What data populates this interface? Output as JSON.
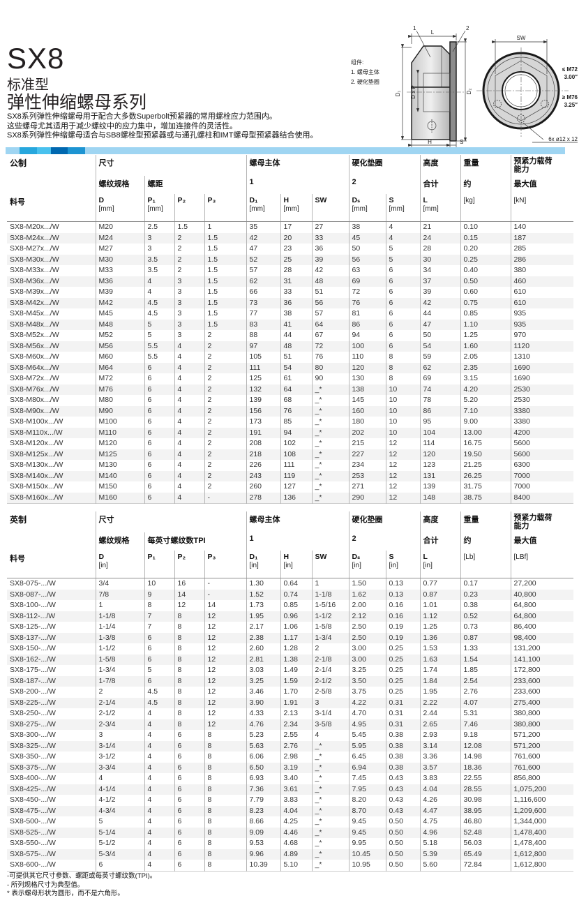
{
  "header": {
    "product": "SX8",
    "type_line": "标准型",
    "series_line": "弹性伸缩螺母系列",
    "description": [
      "SX8系列弹性伸缩螺母用于配合大多数Superbolt预紧器的常用螺栓应力范围内。",
      "这些螺母尤其适用于减少螺纹中的应力集中，增加连接件的灵活性。",
      "SX8系列弹性伸缩螺母适合与SB8螺栓型预紧器或与通孔螺柱和IMT螺母型预紧器结合使用。"
    ]
  },
  "diagram": {
    "note_title": "组件:",
    "note_1": "1. 螺母主体",
    "note_2": "2. 硬化垫圈",
    "dim_L": "L",
    "dim_H": "H",
    "dim_S": "S",
    "dim_SW": "SW",
    "dim_D1": "D₁",
    "dim_DxP": "D x P",
    "dim_D2": "D₂",
    "callout_1": "1",
    "callout_2": "2",
    "hex_max": "≤ M72",
    "hex_max_in": "3.00″",
    "round_min": "≥ M76",
    "round_min_in": "3.25″",
    "holes": "6x ø12 x 12"
  },
  "bar_colors": [
    "#9fd5f2",
    "#27a7dd",
    "#49c1ee",
    "#0068b0",
    "#1d94d2",
    "#9fd5f2"
  ],
  "metric": {
    "name": "metric-spec-table",
    "region": "公制",
    "part_col": "料号",
    "size": "尺寸",
    "thread": "螺纹规格",
    "pitch": "螺距",
    "nut_body": "螺母主体",
    "nut_num": "1",
    "washer": "硬化垫圈",
    "washer_num": "2",
    "height": "高度",
    "height_sub": "合计",
    "weight": "重量",
    "weight_sub": "约",
    "preload": "预紧力载荷\n能力",
    "preload_sub": "最大值",
    "cols": [
      [
        "D",
        "[mm]"
      ],
      [
        "P₁",
        "[mm]"
      ],
      [
        "P₂",
        ""
      ],
      [
        "P₃",
        ""
      ],
      [
        "D₁",
        "[mm]"
      ],
      [
        "H",
        "[mm]"
      ],
      [
        "SW",
        ""
      ],
      [
        "Dₛ",
        "[mm]"
      ],
      [
        "S",
        "[mm]"
      ],
      [
        "L",
        "[mm]"
      ],
      [
        "",
        "[kg]"
      ],
      [
        "",
        "[kN]"
      ]
    ],
    "rows": [
      [
        "SX8-M20x.../W",
        "M20",
        "2.5",
        "1.5",
        "1",
        "35",
        "17",
        "27",
        "38",
        "4",
        "21",
        "0.10",
        "140"
      ],
      [
        "SX8-M24x.../W",
        "M24",
        "3",
        "2",
        "1.5",
        "42",
        "20",
        "33",
        "45",
        "4",
        "24",
        "0.15",
        "187"
      ],
      [
        "SX8-M27x.../W",
        "M27",
        "3",
        "2",
        "1.5",
        "47",
        "23",
        "36",
        "50",
        "5",
        "28",
        "0.20",
        "285"
      ],
      [
        "SX8-M30x.../W",
        "M30",
        "3.5",
        "2",
        "1.5",
        "52",
        "25",
        "39",
        "56",
        "5",
        "30",
        "0.25",
        "286"
      ],
      [
        "SX8-M33x.../W",
        "M33",
        "3.5",
        "2",
        "1.5",
        "57",
        "28",
        "42",
        "63",
        "6",
        "34",
        "0.40",
        "380"
      ],
      [
        "SX8-M36x.../W",
        "M36",
        "4",
        "3",
        "1.5",
        "62",
        "31",
        "48",
        "69",
        "6",
        "37",
        "0.50",
        "460"
      ],
      [
        "SX8-M39x.../W",
        "M39",
        "4",
        "3",
        "1.5",
        "66",
        "33",
        "51",
        "72",
        "6",
        "39",
        "0.60",
        "610"
      ],
      [
        "SX8-M42x.../W",
        "M42",
        "4.5",
        "3",
        "1.5",
        "73",
        "36",
        "56",
        "76",
        "6",
        "42",
        "0.75",
        "610"
      ],
      [
        "SX8-M45x.../W",
        "M45",
        "4.5",
        "3",
        "1.5",
        "77",
        "38",
        "57",
        "81",
        "6",
        "44",
        "0.85",
        "935"
      ],
      [
        "SX8-M48x.../W",
        "M48",
        "5",
        "3",
        "1.5",
        "83",
        "41",
        "64",
        "86",
        "6",
        "47",
        "1.10",
        "935"
      ],
      [
        "SX8-M52x.../W",
        "M52",
        "5",
        "3",
        "2",
        "88",
        "44",
        "67",
        "94",
        "6",
        "50",
        "1.25",
        "970"
      ],
      [
        "SX8-M56x.../W",
        "M56",
        "5.5",
        "4",
        "2",
        "97",
        "48",
        "72",
        "100",
        "6",
        "54",
        "1.60",
        "1120"
      ],
      [
        "SX8-M60x.../W",
        "M60",
        "5.5",
        "4",
        "2",
        "105",
        "51",
        "76",
        "110",
        "8",
        "59",
        "2.05",
        "1310"
      ],
      [
        "SX8-M64x.../W",
        "M64",
        "6",
        "4",
        "2",
        "111",
        "54",
        "80",
        "120",
        "8",
        "62",
        "2.35",
        "1690"
      ],
      [
        "SX8-M72x.../W",
        "M72",
        "6",
        "4",
        "2",
        "125",
        "61",
        "90",
        "130",
        "8",
        "69",
        "3.15",
        "1690"
      ],
      [
        "SX8-M76x.../W",
        "M76",
        "6",
        "4",
        "2",
        "132",
        "64",
        "_*",
        "138",
        "10",
        "74",
        "4.20",
        "2530"
      ],
      [
        "SX8-M80x.../W",
        "M80",
        "6",
        "4",
        "2",
        "139",
        "68",
        "_*",
        "145",
        "10",
        "78",
        "5.20",
        "2530"
      ],
      [
        "SX8-M90x.../W",
        "M90",
        "6",
        "4",
        "2",
        "156",
        "76",
        "_*",
        "160",
        "10",
        "86",
        "7.10",
        "3380"
      ],
      [
        "SX8-M100x.../W",
        "M100",
        "6",
        "4",
        "2",
        "173",
        "85",
        "_*",
        "180",
        "10",
        "95",
        "9.00",
        "3380"
      ],
      [
        "SX8-M110x.../W",
        "M110",
        "6",
        "4",
        "2",
        "191",
        "94",
        "_*",
        "202",
        "10",
        "104",
        "13.00",
        "4200"
      ],
      [
        "SX8-M120x.../W",
        "M120",
        "6",
        "4",
        "2",
        "208",
        "102",
        "_*",
        "215",
        "12",
        "114",
        "16.75",
        "5600"
      ],
      [
        "SX8-M125x.../W",
        "M125",
        "6",
        "4",
        "2",
        "218",
        "108",
        "_*",
        "227",
        "12",
        "120",
        "19.50",
        "5600"
      ],
      [
        "SX8-M130x.../W",
        "M130",
        "6",
        "4",
        "2",
        "226",
        "111",
        "_*",
        "234",
        "12",
        "123",
        "21.25",
        "6300"
      ],
      [
        "SX8-M140x.../W",
        "M140",
        "6",
        "4",
        "2",
        "243",
        "119",
        "_*",
        "253",
        "12",
        "131",
        "26.25",
        "7000"
      ],
      [
        "SX8-M150x.../W",
        "M150",
        "6",
        "4",
        "2",
        "260",
        "127",
        "_*",
        "271",
        "12",
        "139",
        "31.75",
        "7000"
      ],
      [
        "SX8-M160x.../W",
        "M160",
        "6",
        "4",
        "-",
        "278",
        "136",
        "_*",
        "290",
        "12",
        "148",
        "38.75",
        "8400"
      ]
    ]
  },
  "imperial": {
    "name": "imperial-spec-table",
    "region": "英制",
    "part_col": "料号",
    "size": "尺寸",
    "thread": "螺纹规格",
    "pitch": "每英寸螺纹数TPI",
    "nut_body": "螺母主体",
    "nut_num": "1",
    "washer": "硬化垫圈",
    "washer_num": "2",
    "height": "高度",
    "height_sub": "合计",
    "weight": "重量",
    "weight_sub": "约",
    "preload": "预紧力载荷\n能力",
    "preload_sub": "最大值",
    "cols": [
      [
        "D",
        "[in]"
      ],
      [
        "P₁",
        ""
      ],
      [
        "P₂",
        ""
      ],
      [
        "P₃",
        ""
      ],
      [
        "D₁",
        "[in]"
      ],
      [
        "H",
        "[in]"
      ],
      [
        "SW",
        ""
      ],
      [
        "Dₛ",
        "[in]"
      ],
      [
        "S",
        "[in]"
      ],
      [
        "L",
        "[in]"
      ],
      [
        "",
        "[Lb]"
      ],
      [
        "",
        "[LBf]"
      ]
    ],
    "rows": [
      [
        "SX8-075-.../W",
        "3/4",
        "10",
        "16",
        "-",
        "1.30",
        "0.64",
        "1",
        "1.50",
        "0.13",
        "0.77",
        "0.17",
        "27,200"
      ],
      [
        "SX8-087-.../W",
        "7/8",
        "9",
        "14",
        "-",
        "1.52",
        "0.74",
        "1-1/8",
        "1.62",
        "0.13",
        "0.87",
        "0.23",
        "40,800"
      ],
      [
        "SX8-100-.../W",
        "1",
        "8",
        "12",
        "14",
        "1.73",
        "0.85",
        "1-5/16",
        "2.00",
        "0.16",
        "1.01",
        "0.38",
        "64,800"
      ],
      [
        "SX8-112-.../W",
        "1-1/8",
        "7",
        "8",
        "12",
        "1.95",
        "0.96",
        "1-1/2",
        "2.12",
        "0.16",
        "1.12",
        "0.52",
        "64,800"
      ],
      [
        "SX8-125-.../W",
        "1-1/4",
        "7",
        "8",
        "12",
        "2.17",
        "1.06",
        "1-5/8",
        "2.50",
        "0.19",
        "1.25",
        "0.73",
        "86,400"
      ],
      [
        "SX8-137-.../W",
        "1-3/8",
        "6",
        "8",
        "12",
        "2.38",
        "1.17",
        "1-3/4",
        "2.50",
        "0.19",
        "1.36",
        "0.87",
        "98,400"
      ],
      [
        "SX8-150-.../W",
        "1-1/2",
        "6",
        "8",
        "12",
        "2.60",
        "1.28",
        "2",
        "3.00",
        "0.25",
        "1.53",
        "1.33",
        "131,200"
      ],
      [
        "SX8-162-.../W",
        "1-5/8",
        "6",
        "8",
        "12",
        "2.81",
        "1.38",
        "2-1/8",
        "3.00",
        "0.25",
        "1.63",
        "1.54",
        "141,100"
      ],
      [
        "SX8-175-.../W",
        "1-3/4",
        "5",
        "8",
        "12",
        "3.03",
        "1.49",
        "2-1/4",
        "3.25",
        "0.25",
        "1.74",
        "1.85",
        "172,800"
      ],
      [
        "SX8-187-.../W",
        "1-7/8",
        "6",
        "8",
        "12",
        "3.25",
        "1.59",
        "2-1/2",
        "3.50",
        "0.25",
        "1.84",
        "2.54",
        "233,600"
      ],
      [
        "SX8-200-.../W",
        "2",
        "4.5",
        "8",
        "12",
        "3.46",
        "1.70",
        "2-5/8",
        "3.75",
        "0.25",
        "1.95",
        "2.76",
        "233,600"
      ],
      [
        "SX8-225-.../W",
        "2-1/4",
        "4.5",
        "8",
        "12",
        "3.90",
        "1.91",
        "3",
        "4.22",
        "0.31",
        "2.22",
        "4.07",
        "275,400"
      ],
      [
        "SX8-250-.../W",
        "2-1/2",
        "4",
        "8",
        "12",
        "4.33",
        "2.13",
        "3-1/4",
        "4.70",
        "0.31",
        "2.44",
        "5.31",
        "380,800"
      ],
      [
        "SX8-275-.../W",
        "2-3/4",
        "4",
        "8",
        "12",
        "4.76",
        "2.34",
        "3-5/8",
        "4.95",
        "0.31",
        "2.65",
        "7.46",
        "380,800"
      ],
      [
        "SX8-300-.../W",
        "3",
        "4",
        "6",
        "8",
        "5.23",
        "2.55",
        "4",
        "5.45",
        "0.38",
        "2.93",
        "9.18",
        "571,200"
      ],
      [
        "SX8-325-.../W",
        "3-1/4",
        "4",
        "6",
        "8",
        "5.63",
        "2.76",
        "_*",
        "5.95",
        "0.38",
        "3.14",
        "12.08",
        "571,200"
      ],
      [
        "SX8-350-.../W",
        "3-1/2",
        "4",
        "6",
        "8",
        "6.06",
        "2.98",
        "_*",
        "6.45",
        "0.38",
        "3.36",
        "14.98",
        "761,600"
      ],
      [
        "SX8-375-.../W",
        "3-3/4",
        "4",
        "6",
        "8",
        "6.50",
        "3.19",
        "_*",
        "6.94",
        "0.38",
        "3.57",
        "18.36",
        "761,600"
      ],
      [
        "SX8-400-.../W",
        "4",
        "4",
        "6",
        "8",
        "6.93",
        "3.40",
        "_*",
        "7.45",
        "0.43",
        "3.83",
        "22.55",
        "856,800"
      ],
      [
        "SX8-425-.../W",
        "4-1/4",
        "4",
        "6",
        "8",
        "7.36",
        "3.61",
        "_*",
        "7.95",
        "0.43",
        "4.04",
        "28.55",
        "1,075,200"
      ],
      [
        "SX8-450-.../W",
        "4-1/2",
        "4",
        "6",
        "8",
        "7.79",
        "3.83",
        "_*",
        "8.20",
        "0.43",
        "4.26",
        "30.98",
        "1,116,600"
      ],
      [
        "SX8-475-.../W",
        "4-3/4",
        "4",
        "6",
        "8",
        "8.23",
        "4.04",
        "_*",
        "8.70",
        "0.43",
        "4.47",
        "38.95",
        "1,209,600"
      ],
      [
        "SX8-500-.../W",
        "5",
        "4",
        "6",
        "8",
        "8.66",
        "4.25",
        "_*",
        "9.45",
        "0.50",
        "4.75",
        "46.80",
        "1,344,000"
      ],
      [
        "SX8-525-.../W",
        "5-1/4",
        "4",
        "6",
        "8",
        "9.09",
        "4.46",
        "_*",
        "9.45",
        "0.50",
        "4.96",
        "52.48",
        "1,478,400"
      ],
      [
        "SX8-550-.../W",
        "5-1/2",
        "4",
        "6",
        "8",
        "9.53",
        "4.68",
        "_*",
        "9.95",
        "0.50",
        "5.18",
        "56.03",
        "1,478,400"
      ],
      [
        "SX8-575-.../W",
        "5-3/4",
        "4",
        "6",
        "8",
        "9.96",
        "4.89",
        "_*",
        "10.45",
        "0.50",
        "5.39",
        "65.49",
        "1,612,800"
      ],
      [
        "SX8-600-.../W",
        "6",
        "4",
        "6",
        "8",
        "10.39",
        "5.10",
        "_*",
        "10.95",
        "0.50",
        "5.60",
        "72.84",
        "1,612,800"
      ]
    ]
  },
  "footnotes": [
    "-可提供其它尺寸参数、螺距或每英寸螺纹数(TPI)。",
    "- 所列规格尺寸为典型值。",
    "* 表示螺母形状为圆形，而不是六角形。"
  ]
}
